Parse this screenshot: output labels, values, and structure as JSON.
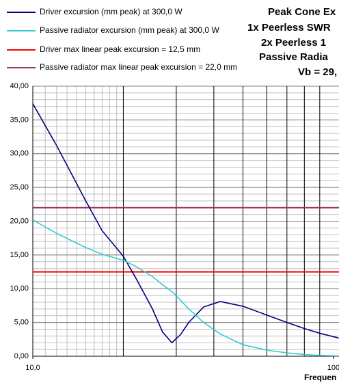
{
  "chart_data": {
    "type": "line",
    "title_lines": [
      "Peak Cone Ex",
      "1x Peerless SWR",
      "2x Peerless 1",
      "Passive Radia",
      "Vb = 29,"
    ],
    "x_label": "Frequen",
    "log_x": true,
    "x": [
      10,
      12,
      15,
      17,
      20,
      22,
      25,
      27,
      29,
      31,
      33,
      37,
      42,
      50,
      60,
      70,
      80,
      90,
      104
    ],
    "series": [
      {
        "name": "Driver excursion (mm peak) at 300,0 W",
        "color": "#000080",
        "values": [
          37.4,
          31.2,
          23.0,
          18.6,
          14.8,
          11.6,
          7.0,
          3.6,
          2.0,
          3.2,
          5.0,
          7.3,
          8.1,
          7.4,
          6.1,
          5.0,
          4.1,
          3.4,
          2.7
        ]
      },
      {
        "name": "Passive radiator excursion (mm peak) at 300,0 W",
        "color": "#33cccc",
        "values": [
          20.2,
          18.2,
          16.1,
          15.1,
          14.2,
          13.3,
          11.8,
          10.6,
          9.6,
          8.3,
          7.0,
          5.0,
          3.3,
          1.7,
          0.9,
          0.5,
          0.25,
          0.12,
          0.05
        ]
      }
    ],
    "reference_lines": [
      {
        "name": "Driver max linear peak excursion = 12,5 mm",
        "color": "#ff0000",
        "value": 12.5
      },
      {
        "name": "Passive radiator max linear peak excursion = 22,0 mm",
        "color": "#993366",
        "value": 22.0
      }
    ],
    "xlim": [
      10,
      104.3
    ],
    "ylim": [
      0,
      40
    ],
    "yticks": [
      {
        "value": 0,
        "label": "0,00"
      },
      {
        "value": 5,
        "label": "5,00"
      },
      {
        "value": 10,
        "label": "10,00"
      },
      {
        "value": 15,
        "label": "15,00"
      },
      {
        "value": 20,
        "label": "20,00"
      },
      {
        "value": 25,
        "label": "25,00"
      },
      {
        "value": 30,
        "label": "30,00"
      },
      {
        "value": 35,
        "label": "35,00"
      },
      {
        "value": 40,
        "label": "40,00"
      }
    ],
    "xticks": [
      {
        "value": 10,
        "label": "10,0"
      },
      100
    ],
    "x_major_grid": [
      20,
      30,
      40,
      50,
      60,
      70,
      80,
      90
    ],
    "x_minor_grid": [
      11,
      12,
      13,
      14,
      15,
      16,
      17,
      18,
      19
    ],
    "y_minor_step": 1
  }
}
